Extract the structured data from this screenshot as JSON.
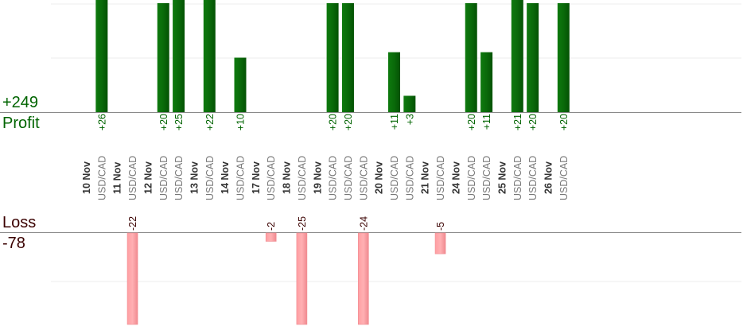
{
  "summary": {
    "profit_total": "+249",
    "profit_label": "Profit",
    "loss_label": "Loss",
    "loss_total": "-78"
  },
  "colors": {
    "profit_bar": "#0a6a0a",
    "profit_text": "#006400",
    "loss_bar": "#ffb0b3",
    "loss_text": "#3a0000",
    "date_text": "#333333",
    "pair_text": "#777777"
  },
  "chart_data": {
    "type": "bar",
    "title": "",
    "profit_max": 20,
    "loss_max": 22,
    "days": [
      {
        "date": "10 Nov",
        "trades": [
          {
            "pair": "USD/CAD",
            "value": 26
          }
        ]
      },
      {
        "date": "11 Nov",
        "trades": [
          {
            "pair": "USD/CAD",
            "value": -22
          }
        ]
      },
      {
        "date": "12 Nov",
        "trades": [
          {
            "pair": "USD/CAD",
            "value": 20
          },
          {
            "pair": "USD/CAD",
            "value": 25
          }
        ]
      },
      {
        "date": "13 Nov",
        "trades": [
          {
            "pair": "USD/CAD",
            "value": 22
          }
        ]
      },
      {
        "date": "14 Nov",
        "trades": [
          {
            "pair": "USD/CAD",
            "value": 10
          }
        ]
      },
      {
        "date": "17 Nov",
        "trades": [
          {
            "pair": "USD/CAD",
            "value": -2
          }
        ]
      },
      {
        "date": "18 Nov",
        "trades": [
          {
            "pair": "USD/CAD",
            "value": -25
          }
        ]
      },
      {
        "date": "19 Nov",
        "trades": [
          {
            "pair": "USD/CAD",
            "value": 20
          },
          {
            "pair": "USD/CAD",
            "value": 20
          },
          {
            "pair": "USD/CAD",
            "value": -24
          }
        ]
      },
      {
        "date": "20 Nov",
        "trades": [
          {
            "pair": "USD/CAD",
            "value": 11
          },
          {
            "pair": "USD/CAD",
            "value": 3
          }
        ]
      },
      {
        "date": "21 Nov",
        "trades": [
          {
            "pair": "USD/CAD",
            "value": -5
          }
        ]
      },
      {
        "date": "24 Nov",
        "trades": [
          {
            "pair": "USD/CAD",
            "value": 20
          },
          {
            "pair": "USD/CAD",
            "value": 11
          }
        ]
      },
      {
        "date": "25 Nov",
        "trades": [
          {
            "pair": "USD/CAD",
            "value": 21
          },
          {
            "pair": "USD/CAD",
            "value": 20
          }
        ]
      },
      {
        "date": "26 Nov",
        "trades": [
          {
            "pair": "USD/CAD",
            "value": 20
          }
        ]
      }
    ]
  }
}
